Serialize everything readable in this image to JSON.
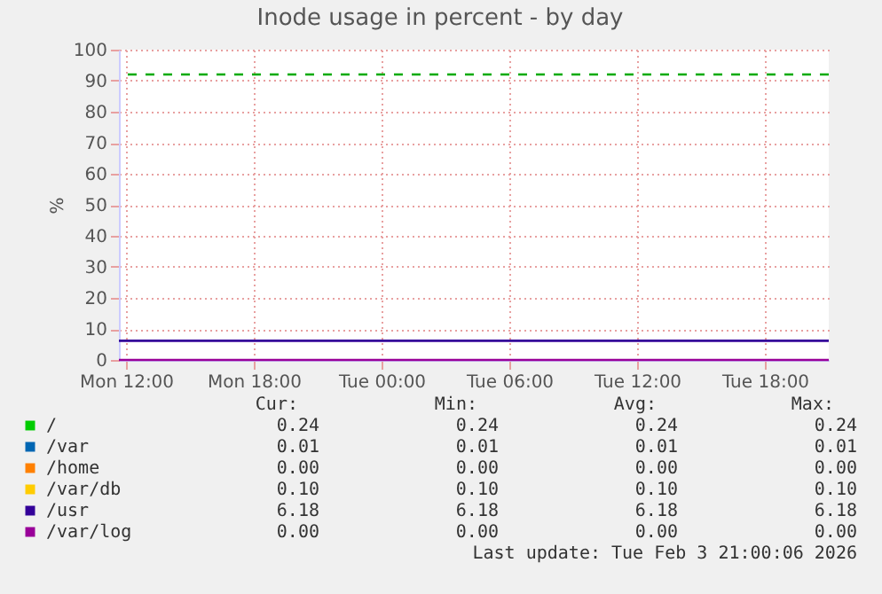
{
  "chart_data": {
    "type": "line",
    "title": "Inode usage in percent - by day",
    "ylabel": "%",
    "x": [
      "2026-02-02T11:40",
      "2026-02-03T21:00"
    ],
    "xlim": [
      "2026-02-02T11:40",
      "2026-02-03T21:00"
    ],
    "xticks": [
      {
        "value": "2026-02-02T12:00",
        "label": "Mon 12:00"
      },
      {
        "value": "2026-02-02T18:00",
        "label": "Mon 18:00"
      },
      {
        "value": "2026-02-03T00:00",
        "label": "Tue 00:00"
      },
      {
        "value": "2026-02-03T06:00",
        "label": "Tue 06:00"
      },
      {
        "value": "2026-02-03T12:00",
        "label": "Tue 12:00"
      },
      {
        "value": "2026-02-03T18:00",
        "label": "Tue 18:00"
      }
    ],
    "ylim": [
      0,
      100
    ],
    "yticks": [
      0,
      10,
      20,
      30,
      40,
      50,
      60,
      70,
      80,
      90,
      100
    ],
    "grid": true,
    "legend": "bottom",
    "line_style": "solid",
    "marker": "none",
    "series": [
      {
        "name": "/",
        "color": "#00cc00",
        "values": [
          null,
          null
        ]
      },
      {
        "name": "/var",
        "color": "#0066b3",
        "values": [
          null,
          null
        ]
      },
      {
        "name": "/home",
        "color": "#ff8000",
        "values": [
          null,
          null
        ]
      },
      {
        "name": "/var/db",
        "color": "#ffcc00",
        "values": [
          null,
          null
        ]
      },
      {
        "name": "/usr",
        "color": "#330099",
        "values": [
          6.18,
          6.18
        ]
      },
      {
        "name": "/var/log",
        "color": "#990099",
        "values": [
          0.0,
          0.0
        ]
      }
    ],
    "ref_lines": [
      {
        "axis": "y",
        "value": 92,
        "color": "#00aa00",
        "line_style": "dashed"
      }
    ],
    "annotations": [
      "Cur:",
      "Min:",
      "Avg:",
      "Max:",
      "0.24",
      "0.24",
      "0.24",
      "0.24",
      "0.01",
      "0.01",
      "0.01",
      "0.01",
      "0.00",
      "0.00",
      "0.00",
      "0.00",
      "0.10",
      "0.10",
      "0.10",
      "0.10",
      "6.18",
      "6.18",
      "6.18",
      "6.18",
      "0.00",
      "0.00",
      "0.00",
      "0.00",
      "Last update: Tue Feb  3 21:00:06 2026"
    ]
  }
}
